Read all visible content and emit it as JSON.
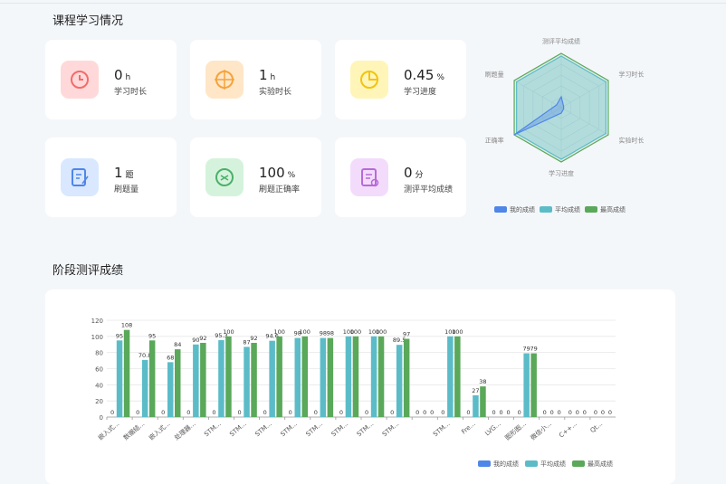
{
  "overview_title": "课程学习情况",
  "cards": [
    {
      "value": 0,
      "unit": "h",
      "label": "学习时长"
    },
    {
      "value": 1,
      "unit": "h",
      "label": "实验时长"
    },
    {
      "value": 0.45,
      "unit": "%",
      "label": "学习进度"
    },
    {
      "value": 1,
      "unit": "题",
      "label": "刷题量"
    },
    {
      "value": 100,
      "unit": "%",
      "label": "刷题正确率"
    },
    {
      "value": 0,
      "unit": "分",
      "label": "测评平均成绩"
    }
  ],
  "stage_title": "阶段测评成绩",
  "chart_data": [
    {
      "type": "radar",
      "indicators": [
        "测评平均成绩",
        "学习时长",
        "实验时长",
        "学习进度",
        "正确率",
        "刷题量"
      ],
      "rlim": [
        0,
        100
      ],
      "series": [
        {
          "name": "我的成绩",
          "color": "#4f86e8",
          "values": [
            20,
            5,
            5,
            10,
            100,
            10
          ]
        },
        {
          "name": "平均成绩",
          "color": "#5bbcc8",
          "values": [
            95,
            95,
            95,
            95,
            95,
            95
          ]
        },
        {
          "name": "最高成绩",
          "color": "#5aa85a",
          "values": [
            100,
            100,
            100,
            100,
            100,
            100
          ]
        }
      ]
    },
    {
      "type": "bar",
      "categories": [
        "嵌入式...",
        "数据结...",
        "嵌入式...",
        "处理器...",
        "STM...",
        "STM...",
        "STM...",
        "STM...",
        "STM...",
        "STM...",
        "STM...",
        "STM...",
        null,
        "STM...",
        "Fre...",
        "LVG...",
        "图形图...",
        "微信小...",
        "C++...",
        "Qt..."
      ],
      "series": [
        {
          "name": "我的成绩",
          "color": "#4f86e8",
          "values": [
            0,
            0,
            0,
            0,
            0,
            0,
            0,
            0,
            0,
            0,
            0,
            0,
            0,
            0,
            0,
            0,
            0,
            0,
            0,
            0
          ]
        },
        {
          "name": "平均成绩",
          "color": "#5bbcc8",
          "values": [
            95,
            70.8,
            68,
            90,
            95.3,
            87,
            94.6,
            98,
            98,
            100,
            100,
            89.5,
            0,
            100,
            27,
            0,
            79,
            0,
            0,
            0
          ]
        },
        {
          "name": "最高成绩",
          "color": "#5aa85a",
          "values": [
            108,
            95,
            84,
            92,
            100,
            92,
            100,
            100,
            98,
            100,
            100,
            97,
            0,
            100,
            38,
            0,
            79,
            0,
            0,
            0
          ]
        }
      ],
      "ylim": [
        0,
        120
      ],
      "yticks": [
        0,
        20,
        40,
        60,
        80,
        100,
        120
      ],
      "grid": true
    }
  ]
}
